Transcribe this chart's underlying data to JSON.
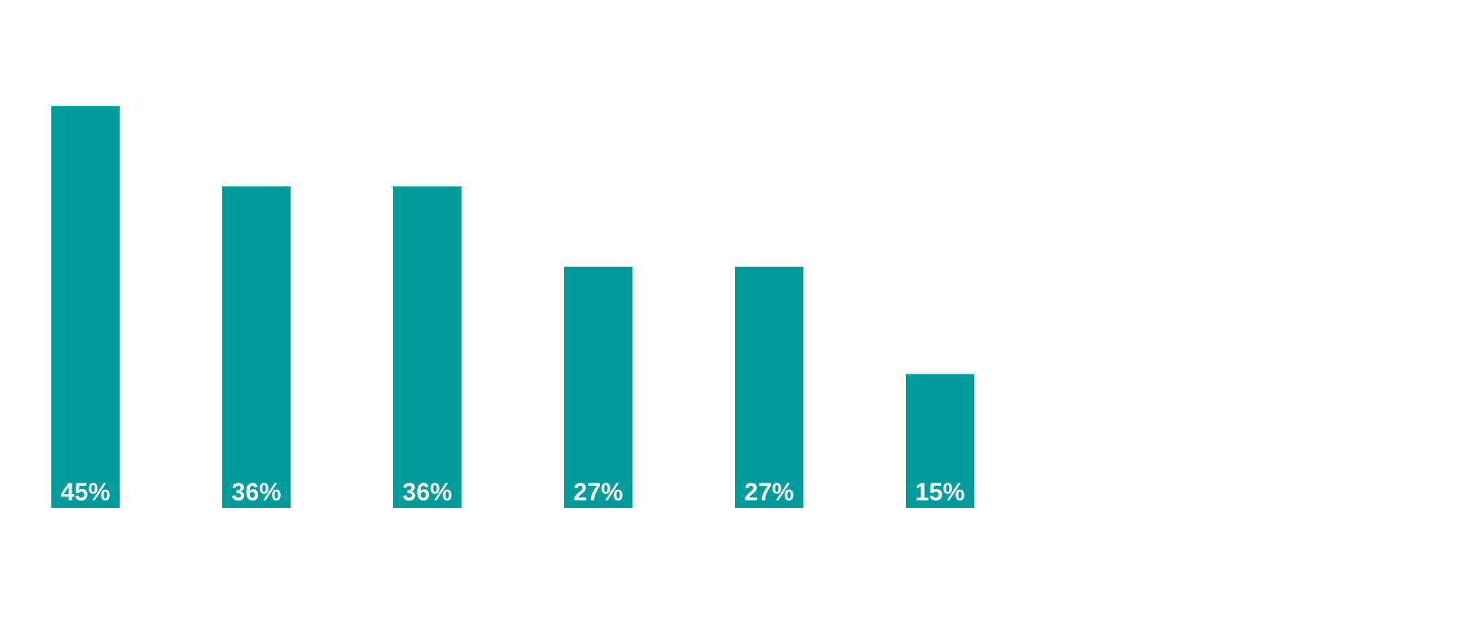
{
  "chart_data": {
    "type": "bar",
    "categories": [
      null,
      null,
      null,
      null,
      null,
      null
    ],
    "values": [
      45,
      36,
      36,
      27,
      27,
      15
    ],
    "color": "#009c9c",
    "value_labels": [
      "45%",
      "36%",
      "36%",
      "27%",
      "27%",
      "15%"
    ],
    "grid": false,
    "legend": false
  }
}
